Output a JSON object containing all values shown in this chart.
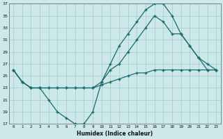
{
  "xlabel": "Humidex (Indice chaleur)",
  "ylabel": "",
  "bg_color": "#cce8e8",
  "grid_color": "#aacfcf",
  "line_color": "#1a6b6b",
  "xlim": [
    -0.5,
    23.5
  ],
  "ylim": [
    17,
    37
  ],
  "xticks": [
    0,
    1,
    2,
    3,
    4,
    5,
    6,
    7,
    8,
    9,
    10,
    11,
    12,
    13,
    14,
    15,
    16,
    17,
    18,
    19,
    20,
    21,
    22,
    23
  ],
  "yticks": [
    17,
    19,
    21,
    23,
    25,
    27,
    29,
    31,
    33,
    35,
    37
  ],
  "line1_x": [
    0,
    1,
    2,
    3,
    4,
    5,
    6,
    7,
    8,
    9,
    10,
    11,
    12,
    13,
    14,
    15,
    16,
    17,
    18,
    19,
    20,
    21,
    22,
    23
  ],
  "line1_y": [
    26,
    24,
    23,
    23,
    23,
    23,
    23,
    23,
    23,
    23,
    23.5,
    24,
    24.5,
    25,
    25.5,
    25.5,
    26,
    26,
    26,
    26,
    26,
    26,
    26,
    26
  ],
  "line2_x": [
    0,
    1,
    2,
    3,
    4,
    5,
    6,
    7,
    8,
    9,
    10,
    11,
    12,
    13,
    14,
    15,
    16,
    17,
    18,
    19,
    20,
    21,
    22,
    23
  ],
  "line2_y": [
    26,
    24,
    23,
    23,
    21,
    19,
    18,
    17,
    17,
    19,
    24,
    27,
    30,
    32,
    34,
    36,
    37,
    37,
    35,
    32,
    30,
    28,
    27,
    26
  ],
  "line3_x": [
    0,
    1,
    2,
    3,
    4,
    5,
    6,
    7,
    8,
    9,
    10,
    11,
    12,
    13,
    14,
    15,
    16,
    17,
    18,
    19,
    20,
    21,
    22,
    23
  ],
  "line3_y": [
    26,
    24,
    23,
    23,
    23,
    23,
    23,
    23,
    23,
    23,
    24,
    26,
    27,
    29,
    31,
    33,
    35,
    34,
    32,
    32,
    30,
    28,
    26,
    26
  ]
}
